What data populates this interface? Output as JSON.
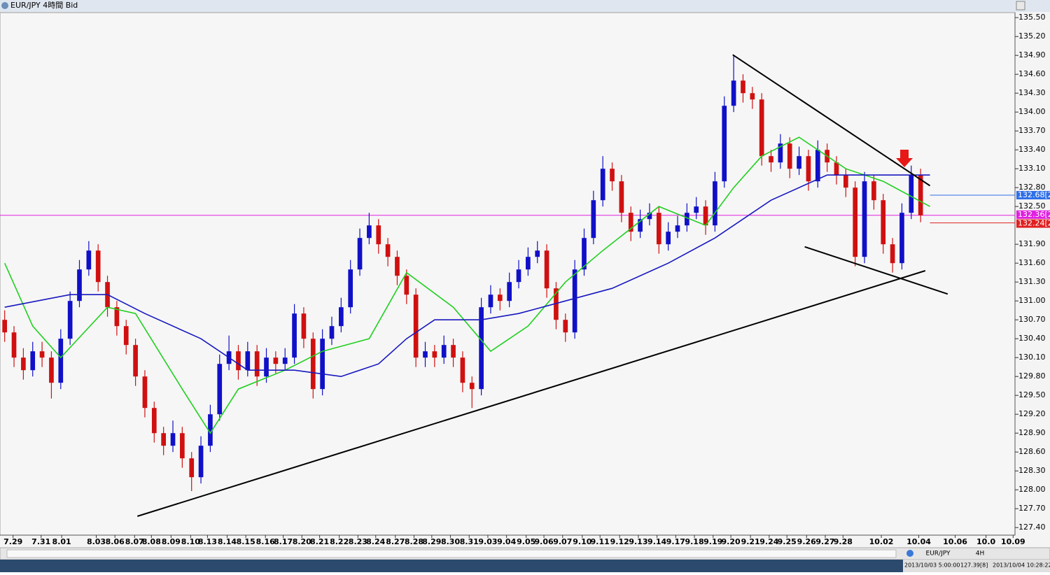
{
  "window": {
    "title": "EUR/JPY 4時間 Bid"
  },
  "status": {
    "symbol": "EUR/JPY",
    "timeframe": "4H",
    "cursor_time": "2013/10/03 5:00:00",
    "cursor_price": "127.39[8]",
    "clock": "2013/10/04 10:28:22"
  },
  "chart_data": {
    "type": "candlestick",
    "up_color": "#1010c8",
    "down_color": "#d01010",
    "xlim": [
      -0.5,
      108.1
    ],
    "ylim": [
      127.28,
      135.58
    ],
    "candles": [
      [
        130.7,
        130.85,
        130.35,
        130.5
      ],
      [
        130.5,
        130.6,
        129.95,
        130.1
      ],
      [
        130.1,
        130.25,
        129.75,
        129.9
      ],
      [
        129.9,
        130.35,
        129.8,
        130.2
      ],
      [
        130.2,
        130.35,
        129.95,
        130.1
      ],
      [
        130.1,
        130.2,
        129.45,
        129.7
      ],
      [
        129.7,
        130.55,
        129.6,
        130.4
      ],
      [
        130.4,
        131.15,
        130.3,
        131.0
      ],
      [
        131.0,
        131.65,
        130.9,
        131.5
      ],
      [
        131.5,
        131.95,
        131.4,
        131.8
      ],
      [
        131.8,
        131.9,
        131.15,
        131.3
      ],
      [
        131.3,
        131.4,
        130.75,
        130.9
      ],
      [
        130.9,
        131.0,
        130.45,
        130.6
      ],
      [
        130.6,
        130.7,
        130.15,
        130.3
      ],
      [
        130.3,
        130.4,
        129.65,
        129.8
      ],
      [
        129.8,
        129.9,
        129.15,
        129.3
      ],
      [
        129.3,
        129.4,
        128.75,
        128.9
      ],
      [
        128.9,
        129.0,
        128.55,
        128.7
      ],
      [
        128.7,
        129.1,
        128.6,
        128.9
      ],
      [
        128.9,
        129.0,
        128.35,
        128.5
      ],
      [
        128.5,
        128.6,
        127.98,
        128.2
      ],
      [
        128.2,
        128.85,
        128.1,
        128.7
      ],
      [
        128.7,
        129.35,
        128.6,
        129.2
      ],
      [
        129.2,
        130.15,
        129.1,
        130.0
      ],
      [
        130.0,
        130.45,
        129.9,
        130.2
      ],
      [
        130.2,
        130.3,
        129.75,
        129.9
      ],
      [
        129.9,
        130.35,
        129.8,
        130.2
      ],
      [
        130.2,
        130.3,
        129.65,
        129.8
      ],
      [
        129.8,
        130.25,
        129.7,
        130.1
      ],
      [
        130.1,
        130.2,
        129.85,
        130.0
      ],
      [
        130.0,
        130.25,
        129.9,
        130.1
      ],
      [
        130.1,
        130.95,
        130.0,
        130.8
      ],
      [
        130.8,
        130.9,
        130.25,
        130.4
      ],
      [
        130.4,
        130.5,
        129.45,
        129.6
      ],
      [
        129.6,
        130.55,
        129.5,
        130.4
      ],
      [
        130.4,
        130.75,
        130.3,
        130.6
      ],
      [
        130.6,
        131.05,
        130.5,
        130.9
      ],
      [
        130.9,
        131.65,
        130.8,
        131.5
      ],
      [
        131.5,
        132.15,
        131.4,
        132.0
      ],
      [
        132.0,
        132.4,
        131.9,
        132.2
      ],
      [
        132.2,
        132.3,
        131.75,
        131.9
      ],
      [
        131.9,
        132.0,
        131.55,
        131.7
      ],
      [
        131.7,
        131.8,
        131.25,
        131.4
      ],
      [
        131.4,
        131.5,
        130.95,
        131.1
      ],
      [
        131.1,
        131.2,
        129.95,
        130.1
      ],
      [
        130.1,
        130.35,
        129.95,
        130.2
      ],
      [
        130.2,
        130.3,
        129.95,
        130.1
      ],
      [
        130.1,
        130.45,
        130.0,
        130.3
      ],
      [
        130.3,
        130.4,
        129.95,
        130.1
      ],
      [
        130.1,
        130.2,
        129.55,
        129.7
      ],
      [
        129.7,
        129.8,
        129.3,
        129.6
      ],
      [
        129.6,
        131.05,
        129.5,
        130.9
      ],
      [
        130.9,
        131.25,
        130.8,
        131.1
      ],
      [
        131.1,
        131.2,
        130.85,
        131.0
      ],
      [
        131.0,
        131.45,
        130.9,
        131.3
      ],
      [
        131.3,
        131.65,
        131.2,
        131.5
      ],
      [
        131.5,
        131.85,
        131.4,
        131.7
      ],
      [
        131.7,
        131.95,
        131.6,
        131.8
      ],
      [
        131.8,
        131.9,
        131.05,
        131.2
      ],
      [
        131.2,
        131.3,
        130.55,
        130.7
      ],
      [
        130.7,
        130.8,
        130.35,
        130.5
      ],
      [
        130.5,
        131.65,
        130.4,
        131.5
      ],
      [
        131.5,
        132.15,
        131.4,
        132.0
      ],
      [
        132.0,
        132.75,
        131.9,
        132.6
      ],
      [
        132.6,
        133.3,
        132.5,
        133.1
      ],
      [
        133.1,
        133.2,
        132.75,
        132.9
      ],
      [
        132.9,
        133.0,
        132.25,
        132.4
      ],
      [
        132.4,
        132.5,
        131.95,
        132.1
      ],
      [
        132.1,
        132.45,
        132.0,
        132.3
      ],
      [
        132.3,
        132.55,
        132.2,
        132.4
      ],
      [
        132.4,
        132.5,
        131.75,
        131.9
      ],
      [
        131.9,
        132.25,
        131.8,
        132.1
      ],
      [
        132.1,
        132.35,
        132.0,
        132.2
      ],
      [
        132.2,
        132.55,
        132.1,
        132.4
      ],
      [
        132.4,
        132.65,
        132.3,
        132.5
      ],
      [
        132.5,
        132.6,
        132.05,
        132.2
      ],
      [
        132.2,
        133.05,
        132.1,
        132.9
      ],
      [
        132.9,
        134.25,
        132.8,
        134.1
      ],
      [
        134.1,
        134.9,
        134.0,
        134.5
      ],
      [
        134.5,
        134.6,
        134.15,
        134.3
      ],
      [
        134.3,
        134.4,
        134.05,
        134.2
      ],
      [
        134.2,
        134.3,
        133.15,
        133.3
      ],
      [
        133.3,
        133.4,
        133.05,
        133.2
      ],
      [
        133.2,
        133.65,
        133.1,
        133.5
      ],
      [
        133.5,
        133.6,
        132.95,
        133.1
      ],
      [
        133.1,
        133.45,
        133.0,
        133.3
      ],
      [
        133.3,
        133.4,
        132.75,
        132.9
      ],
      [
        132.9,
        133.55,
        132.8,
        133.4
      ],
      [
        133.4,
        133.5,
        133.05,
        133.2
      ],
      [
        133.2,
        133.3,
        132.85,
        133.0
      ],
      [
        133.0,
        133.1,
        132.65,
        132.8
      ],
      [
        132.8,
        132.9,
        131.55,
        131.7
      ],
      [
        131.7,
        133.05,
        131.6,
        132.9
      ],
      [
        132.9,
        133.0,
        132.45,
        132.6
      ],
      [
        132.6,
        132.7,
        131.75,
        131.9
      ],
      [
        131.9,
        132.0,
        131.45,
        131.6
      ],
      [
        131.6,
        132.55,
        131.5,
        132.4
      ],
      [
        132.4,
        133.15,
        132.3,
        133.0
      ],
      [
        133.0,
        133.1,
        132.25,
        132.36
      ]
    ],
    "series": [
      {
        "color": "#20d020",
        "x": [
          0,
          3,
          6,
          11,
          14,
          19,
          22,
          25,
          30,
          34,
          39,
          43,
          48,
          52,
          56,
          60,
          64,
          70,
          75,
          78,
          81,
          85,
          90,
          94,
          99
        ],
        "values": [
          131.6,
          130.6,
          130.1,
          130.9,
          130.8,
          129.6,
          128.9,
          129.6,
          129.9,
          130.2,
          130.4,
          131.45,
          130.9,
          130.2,
          130.6,
          131.3,
          131.8,
          132.5,
          132.2,
          132.8,
          133.3,
          133.6,
          133.1,
          132.9,
          132.5
        ]
      },
      {
        "color": "#1818c0",
        "x": [
          0,
          7,
          11,
          15,
          21,
          26,
          31,
          36,
          40,
          43,
          46,
          51,
          55,
          60,
          65,
          71,
          76,
          82,
          88,
          94,
          99
        ],
        "values": [
          130.9,
          131.1,
          131.1,
          130.8,
          130.4,
          129.9,
          129.9,
          129.8,
          130.0,
          130.4,
          130.7,
          130.7,
          130.8,
          131.0,
          131.2,
          131.6,
          132.0,
          132.6,
          133.0,
          133.0,
          133.0
        ]
      }
    ],
    "trendlines": [
      {
        "x": [
          14.2,
          98.5
        ],
        "values": [
          127.58,
          131.48
        ]
      },
      {
        "x": [
          77.9,
          99.0
        ],
        "values": [
          134.91,
          132.83
        ]
      },
      {
        "x": [
          85.6,
          100.9
        ],
        "values": [
          131.86,
          131.11
        ]
      }
    ],
    "markers": [
      {
        "value": 132.68,
        "label": "132.68[2",
        "color": "#2f6fe8"
      },
      {
        "value": 132.36,
        "label": "132.36[2",
        "color": "#e020e0"
      },
      {
        "value": 132.24,
        "label": "132.24[2",
        "color": "#e02020"
      }
    ],
    "yticks": [
      {
        "value": 135.5,
        "label": "135.50"
      },
      {
        "value": 135.2,
        "label": "135.20"
      },
      {
        "value": 134.9,
        "label": "134.90"
      },
      {
        "value": 134.6,
        "label": "134.60"
      },
      {
        "value": 134.3,
        "label": "134.30"
      },
      {
        "value": 134,
        "label": "134.00"
      },
      {
        "value": 133.7,
        "label": "133.70"
      },
      {
        "value": 133.4,
        "label": "133.40"
      },
      {
        "value": 133.1,
        "label": "133.10"
      },
      {
        "value": 132.8,
        "label": "132.80"
      },
      {
        "value": 132.5,
        "label": "132.50"
      },
      {
        "value": 131.9,
        "label": "131.90"
      },
      {
        "value": 131.6,
        "label": "131.60"
      },
      {
        "value": 131.3,
        "label": "131.30"
      },
      {
        "value": 131,
        "label": "131.00"
      },
      {
        "value": 130.7,
        "label": "130.70"
      },
      {
        "value": 130.4,
        "label": "130.40"
      },
      {
        "value": 130.1,
        "label": "130.10"
      },
      {
        "value": 129.8,
        "label": "129.80"
      },
      {
        "value": 129.5,
        "label": "129.50"
      },
      {
        "value": 129.2,
        "label": "129.20"
      },
      {
        "value": 128.9,
        "label": "128.90"
      },
      {
        "value": 128.6,
        "label": "128.60"
      },
      {
        "value": 128.3,
        "label": "128.30"
      },
      {
        "value": 128,
        "label": "128.00"
      },
      {
        "value": 127.7,
        "label": "127.70"
      },
      {
        "value": 127.4,
        "label": "127.40"
      }
    ],
    "xticks": [
      {
        "value": 0.9,
        "label": "7.29"
      },
      {
        "value": 3.9,
        "label": "7.31"
      },
      {
        "value": 6.1,
        "label": "8.01"
      },
      {
        "value": 9.8,
        "label": "8.03"
      },
      {
        "value": 11.8,
        "label": "8.06"
      },
      {
        "value": 13.9,
        "label": "8.07"
      },
      {
        "value": 15.7,
        "label": "8.08"
      },
      {
        "value": 17.8,
        "label": "8.09"
      },
      {
        "value": 19.9,
        "label": "8.10"
      },
      {
        "value": 21.7,
        "label": "8.13"
      },
      {
        "value": 23.8,
        "label": "8.14"
      },
      {
        "value": 25.8,
        "label": "8.15"
      },
      {
        "value": 27.9,
        "label": "8.16"
      },
      {
        "value": 29.8,
        "label": "8.17"
      },
      {
        "value": 31.8,
        "label": "8.20"
      },
      {
        "value": 33.7,
        "label": "8.21"
      },
      {
        "value": 35.8,
        "label": "8.22"
      },
      {
        "value": 37.8,
        "label": "8.23"
      },
      {
        "value": 39.7,
        "label": "8.24"
      },
      {
        "value": 41.8,
        "label": "8.27"
      },
      {
        "value": 43.8,
        "label": "8.28"
      },
      {
        "value": 45.7,
        "label": "8.29"
      },
      {
        "value": 47.7,
        "label": "8.30"
      },
      {
        "value": 49.7,
        "label": "8.31"
      },
      {
        "value": 51.7,
        "label": "9.03"
      },
      {
        "value": 53.7,
        "label": "9.04"
      },
      {
        "value": 55.8,
        "label": "9.05"
      },
      {
        "value": 57.7,
        "label": "9.06"
      },
      {
        "value": 59.7,
        "label": "9.07"
      },
      {
        "value": 61.8,
        "label": "9.10"
      },
      {
        "value": 63.7,
        "label": "9.11"
      },
      {
        "value": 65.8,
        "label": "9.12"
      },
      {
        "value": 67.8,
        "label": "9.13"
      },
      {
        "value": 69.8,
        "label": "9.14"
      },
      {
        "value": 71.8,
        "label": "9.17"
      },
      {
        "value": 73.8,
        "label": "9.18"
      },
      {
        "value": 75.8,
        "label": "9.19"
      },
      {
        "value": 77.7,
        "label": "9.20"
      },
      {
        "value": 79.8,
        "label": "9.21"
      },
      {
        "value": 81.8,
        "label": "9.24"
      },
      {
        "value": 83.7,
        "label": "9.25"
      },
      {
        "value": 85.8,
        "label": "9.26"
      },
      {
        "value": 87.8,
        "label": "9.27"
      },
      {
        "value": 89.7,
        "label": "9.28"
      },
      {
        "value": 93.8,
        "label": "10.02"
      },
      {
        "value": 97.8,
        "label": "10.04"
      },
      {
        "value": 101.7,
        "label": "10.06"
      },
      {
        "value": 105.0,
        "label": "10.0"
      },
      {
        "value": 107.9,
        "label": "10.09"
      }
    ]
  }
}
